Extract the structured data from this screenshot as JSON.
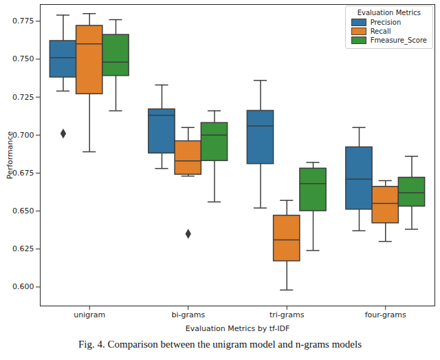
{
  "chart_data": {
    "type": "box",
    "caption": "Fig. 4.  Comparison between the unigram model and n-grams models",
    "x_label": "Evaluation Metrics by tf-IDF",
    "y_label": "Performance",
    "categories": [
      "unigram",
      "bi-grams",
      "tri-grams",
      "four-grams"
    ],
    "ylim": [
      0.5875,
      0.786
    ],
    "yticks": [
      {
        "value": 0.6,
        "label": "0.600"
      },
      {
        "value": 0.625,
        "label": "0.625"
      },
      {
        "value": 0.65,
        "label": "0.650"
      },
      {
        "value": 0.675,
        "label": "0.675"
      },
      {
        "value": 0.7,
        "label": "0.700"
      },
      {
        "value": 0.725,
        "label": "0.725"
      },
      {
        "value": 0.75,
        "label": "0.750"
      },
      {
        "value": 0.775,
        "label": "0.775"
      }
    ],
    "grid": false,
    "legend": "upper right",
    "legend_title": "Evaluation Metrics",
    "series": [
      {
        "name": "Precision",
        "color": "#3274a1",
        "values": [
          {
            "min": 0.729,
            "q1": 0.738,
            "median": 0.751,
            "q3": 0.762,
            "max": 0.779,
            "outliers": [
              0.701
            ]
          },
          {
            "min": 0.678,
            "q1": 0.688,
            "median": 0.713,
            "q3": 0.717,
            "max": 0.733,
            "outliers": []
          },
          {
            "min": 0.652,
            "q1": 0.681,
            "median": 0.706,
            "q3": 0.716,
            "max": 0.736,
            "outliers": []
          },
          {
            "min": 0.637,
            "q1": 0.651,
            "median": 0.671,
            "q3": 0.692,
            "max": 0.705,
            "outliers": []
          }
        ]
      },
      {
        "name": "Recall",
        "color": "#e1812c",
        "values": [
          {
            "min": 0.689,
            "q1": 0.727,
            "median": 0.76,
            "q3": 0.772,
            "max": 0.78,
            "outliers": []
          },
          {
            "min": 0.673,
            "q1": 0.674,
            "median": 0.683,
            "q3": 0.696,
            "max": 0.705,
            "outliers": [
              0.635
            ]
          },
          {
            "min": 0.598,
            "q1": 0.617,
            "median": 0.631,
            "q3": 0.647,
            "max": 0.657,
            "outliers": []
          },
          {
            "min": 0.63,
            "q1": 0.642,
            "median": 0.655,
            "q3": 0.666,
            "max": 0.67,
            "outliers": []
          }
        ]
      },
      {
        "name": "Fmeasure_Score",
        "color": "#3a923a",
        "values": [
          {
            "min": 0.716,
            "q1": 0.739,
            "median": 0.748,
            "q3": 0.766,
            "max": 0.776,
            "outliers": []
          },
          {
            "min": 0.656,
            "q1": 0.683,
            "median": 0.7,
            "q3": 0.708,
            "max": 0.716,
            "outliers": []
          },
          {
            "min": 0.624,
            "q1": 0.65,
            "median": 0.668,
            "q3": 0.678,
            "max": 0.682,
            "outliers": []
          },
          {
            "min": 0.638,
            "q1": 0.653,
            "median": 0.662,
            "q3": 0.672,
            "max": 0.686,
            "outliers": []
          }
        ]
      }
    ]
  }
}
